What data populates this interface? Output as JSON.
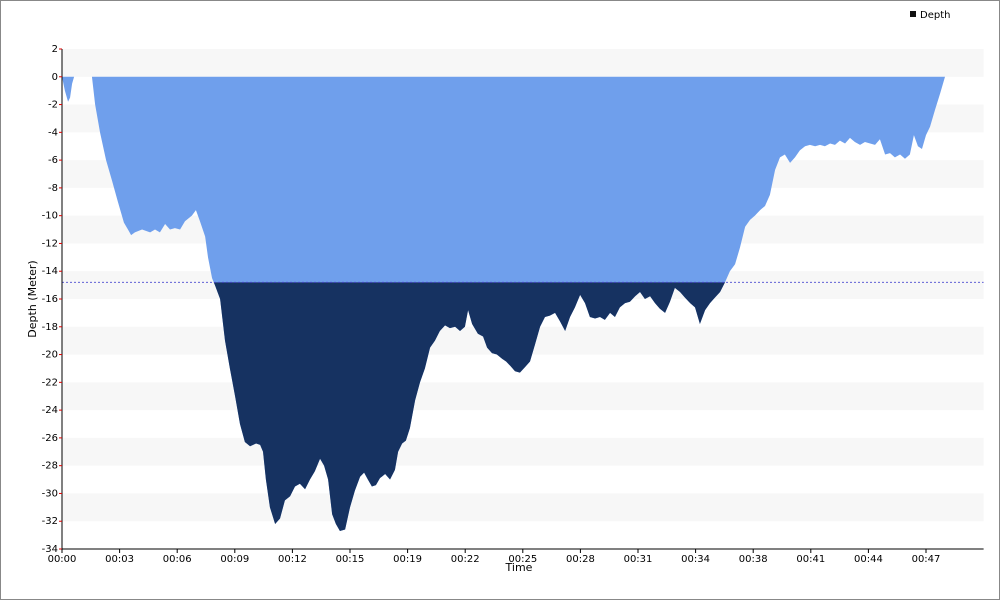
{
  "chart_data": {
    "type": "area",
    "x_label": "Time",
    "y_label": "Depth (Meter)",
    "xlim": [
      0,
      3200
    ],
    "ylim": [
      -34,
      2
    ],
    "xticks": [
      {
        "value": 0,
        "label": "00:00"
      },
      {
        "value": 200,
        "label": "00:03"
      },
      {
        "value": 400,
        "label": "00:06"
      },
      {
        "value": 600,
        "label": "00:09"
      },
      {
        "value": 800,
        "label": "00:12"
      },
      {
        "value": 1000,
        "label": "00:15"
      },
      {
        "value": 1200,
        "label": "00:19"
      },
      {
        "value": 1400,
        "label": "00:22"
      },
      {
        "value": 1600,
        "label": "00:25"
      },
      {
        "value": 1800,
        "label": "00:28"
      },
      {
        "value": 2000,
        "label": "00:31"
      },
      {
        "value": 2200,
        "label": "00:34"
      },
      {
        "value": 2400,
        "label": "00:38"
      },
      {
        "value": 2600,
        "label": "00:41"
      },
      {
        "value": 2800,
        "label": "00:44"
      },
      {
        "value": 3000,
        "label": "00:47"
      }
    ],
    "yticks": [
      2,
      0,
      -2,
      -4,
      -6,
      -8,
      -10,
      -12,
      -14,
      -16,
      -18,
      -20,
      -22,
      -24,
      -26,
      -28,
      -30,
      -32,
      -34
    ],
    "grid_bands": true,
    "band_color": "#f7f7f7",
    "legend_position": "top-right",
    "legend_marker_color": "#111111",
    "threshold": -14.8,
    "threshold_line_color": "#4a4ad0",
    "below_threshold_color": "#163261",
    "x": [
      0,
      10,
      21,
      28,
      35,
      42,
      104,
      115,
      132,
      153,
      174,
      194,
      215,
      229,
      240,
      253,
      278,
      306,
      323,
      340,
      358,
      375,
      392,
      410,
      427,
      451,
      465,
      479,
      497,
      507,
      521,
      531,
      549,
      566,
      583,
      601,
      618,
      635,
      653,
      674,
      688,
      698,
      708,
      722,
      740,
      757,
      774,
      792,
      809,
      826,
      844,
      861,
      878,
      896,
      910,
      924,
      938,
      951,
      965,
      983,
      1000,
      1017,
      1035,
      1049,
      1062,
      1076,
      1090,
      1104,
      1122,
      1139,
      1156,
      1167,
      1181,
      1194,
      1208,
      1226,
      1243,
      1260,
      1278,
      1295,
      1312,
      1330,
      1347,
      1365,
      1382,
      1399,
      1410,
      1424,
      1444,
      1462,
      1476,
      1493,
      1510,
      1528,
      1542,
      1556,
      1573,
      1590,
      1608,
      1625,
      1642,
      1660,
      1677,
      1694,
      1712,
      1729,
      1747,
      1764,
      1781,
      1799,
      1816,
      1833,
      1851,
      1868,
      1885,
      1903,
      1920,
      1937,
      1955,
      1972,
      1990,
      2007,
      2024,
      2042,
      2059,
      2076,
      2094,
      2111,
      2128,
      2146,
      2163,
      2181,
      2198,
      2215,
      2233,
      2250,
      2267,
      2285,
      2302,
      2319,
      2337,
      2354,
      2372,
      2389,
      2406,
      2424,
      2441,
      2458,
      2476,
      2493,
      2510,
      2528,
      2545,
      2562,
      2580,
      2597,
      2615,
      2632,
      2649,
      2667,
      2684,
      2701,
      2719,
      2736,
      2753,
      2771,
      2788,
      2806,
      2823,
      2840,
      2858,
      2875,
      2892,
      2910,
      2927,
      2944,
      2958,
      2972,
      2986,
      3000,
      3014,
      3031,
      3049,
      3066
    ],
    "series": [
      {
        "name": "Depth",
        "color": "#6f9fec",
        "values": [
          0,
          -1,
          -1.8,
          -1.5,
          -0.5,
          0,
          0,
          -2,
          -4,
          -6,
          -7.5,
          -9,
          -10.5,
          -11,
          -11.4,
          -11.2,
          -11,
          -11.2,
          -11,
          -11.2,
          -10.6,
          -11,
          -10.9,
          -11,
          -10.4,
          -10,
          -9.6,
          -10.4,
          -11.5,
          -13,
          -14.5,
          -15,
          -16,
          -19,
          -21,
          -23,
          -25,
          -26.3,
          -26.6,
          -26.4,
          -26.5,
          -27,
          -29,
          -31,
          -32.2,
          -31.8,
          -30.5,
          -30.2,
          -29.5,
          -29.3,
          -29.7,
          -29,
          -28.4,
          -27.5,
          -28,
          -29,
          -31.5,
          -32.2,
          -32.7,
          -32.6,
          -31,
          -29.8,
          -28.8,
          -28.5,
          -29,
          -29.5,
          -29.4,
          -28.9,
          -28.6,
          -29,
          -28.3,
          -27,
          -26.4,
          -26.2,
          -25.3,
          -23.3,
          -22,
          -21,
          -19.5,
          -19,
          -18.3,
          -17.9,
          -18.1,
          -18,
          -18.3,
          -18,
          -16.8,
          -17.8,
          -18.5,
          -18.7,
          -19.5,
          -19.9,
          -20,
          -20.3,
          -20.5,
          -20.8,
          -21.2,
          -21.3,
          -20.9,
          -20.5,
          -19.3,
          -18,
          -17.3,
          -17.2,
          -17,
          -17.6,
          -18.3,
          -17.3,
          -16.6,
          -15.7,
          -16.3,
          -17.3,
          -17.4,
          -17.3,
          -17.5,
          -17,
          -17.3,
          -16.6,
          -16.3,
          -16.2,
          -15.8,
          -15.5,
          -16,
          -15.8,
          -16.3,
          -16.7,
          -17,
          -16.2,
          -15.2,
          -15.5,
          -15.9,
          -16.3,
          -16.6,
          -17.8,
          -16.8,
          -16.3,
          -15.9,
          -15.5,
          -14.8,
          -14,
          -13.5,
          -12.3,
          -10.8,
          -10.3,
          -10,
          -9.6,
          -9.3,
          -8.5,
          -6.7,
          -5.8,
          -5.6,
          -6.2,
          -5.8,
          -5.3,
          -5,
          -4.9,
          -5,
          -4.9,
          -5,
          -4.8,
          -4.9,
          -4.6,
          -4.8,
          -4.4,
          -4.7,
          -4.9,
          -4.7,
          -4.8,
          -4.9,
          -4.5,
          -5.6,
          -5.5,
          -5.8,
          -5.6,
          -5.9,
          -5.6,
          -4.2,
          -5,
          -5.2,
          -4.2,
          -3.6,
          -2.4,
          -1.2,
          0
        ]
      }
    ]
  }
}
